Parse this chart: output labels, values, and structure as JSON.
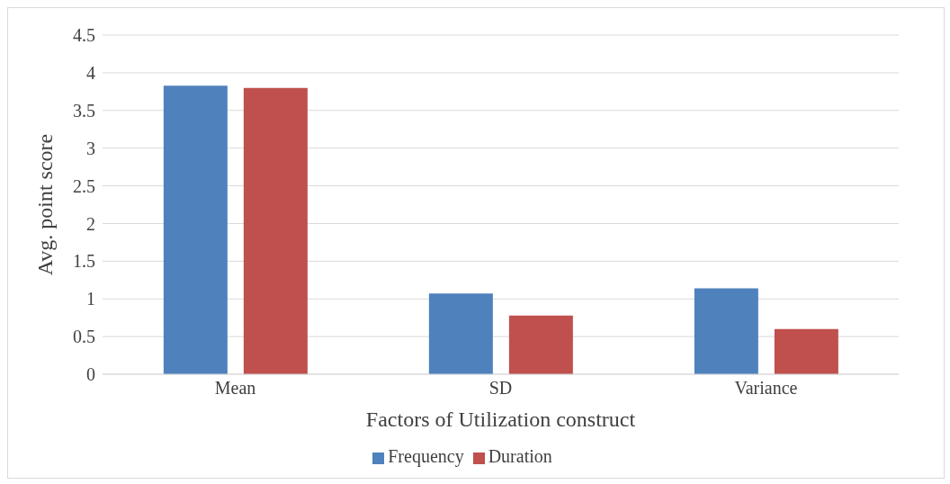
{
  "chart_data": {
    "type": "bar",
    "xlabel": "Factors of Utilization construct",
    "ylabel": "Avg. point score",
    "categories": [
      "Mean",
      "SD",
      "Variance"
    ],
    "series": [
      {
        "name": "Frequency",
        "color": "#4f81bd",
        "values": [
          3.83,
          1.07,
          1.14
        ]
      },
      {
        "name": "Duration",
        "color": "#c0504d",
        "values": [
          3.8,
          0.78,
          0.6
        ]
      }
    ],
    "ylim": [
      0,
      4.5
    ],
    "yticks": [
      0,
      0.5,
      1,
      1.5,
      2,
      2.5,
      3,
      3.5,
      4,
      4.5
    ],
    "grid": "y",
    "legend": "bottom"
  }
}
